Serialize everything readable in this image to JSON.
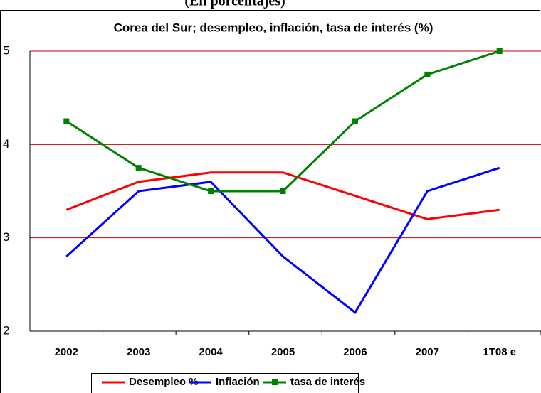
{
  "chart_data": {
    "type": "line",
    "subtitle": "(En porcentajes)",
    "title": "Corea del Sur; desempleo, inflación, tasa de interés (%)",
    "categories": [
      "2002",
      "2003",
      "2004",
      "2005",
      "2006",
      "2007",
      "1T08 e"
    ],
    "series": [
      {
        "name": "Desempleo %",
        "color": "#ff0000",
        "values": [
          3.3,
          3.6,
          3.7,
          3.7,
          3.45,
          3.2,
          3.3
        ]
      },
      {
        "name": "Inflación",
        "color": "#0000ff",
        "values": [
          2.8,
          3.5,
          3.6,
          2.8,
          2.2,
          3.5,
          3.75
        ]
      },
      {
        "name": "tasa de interés",
        "color": "#008000",
        "marker": "square",
        "values": [
          4.25,
          3.75,
          3.5,
          3.5,
          4.25,
          4.75,
          5
        ]
      }
    ],
    "ylim": [
      2,
      5
    ],
    "yticks": [
      2,
      3,
      4,
      5
    ],
    "grid": true,
    "grid_color": "#cc0000",
    "legend": "bottom"
  }
}
